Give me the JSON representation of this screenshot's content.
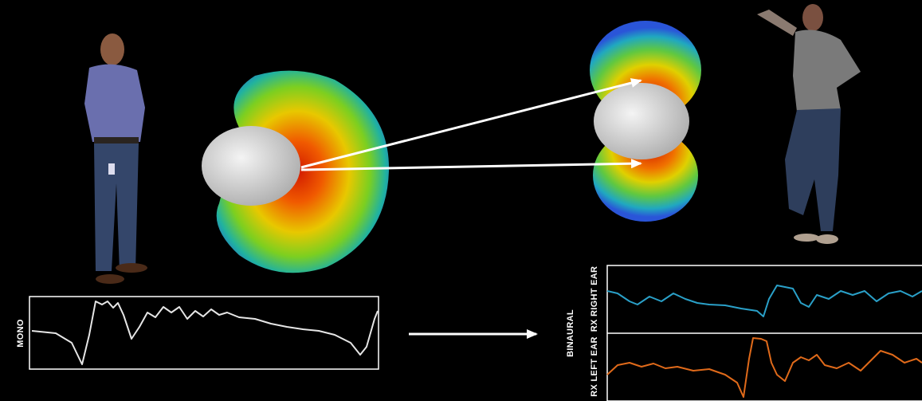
{
  "labels": {
    "mono": "MONO",
    "binaural": "BINAURAL",
    "right_ear": "RX RIGHT EAR",
    "left_ear": "RX LEFT EAR"
  }
}
